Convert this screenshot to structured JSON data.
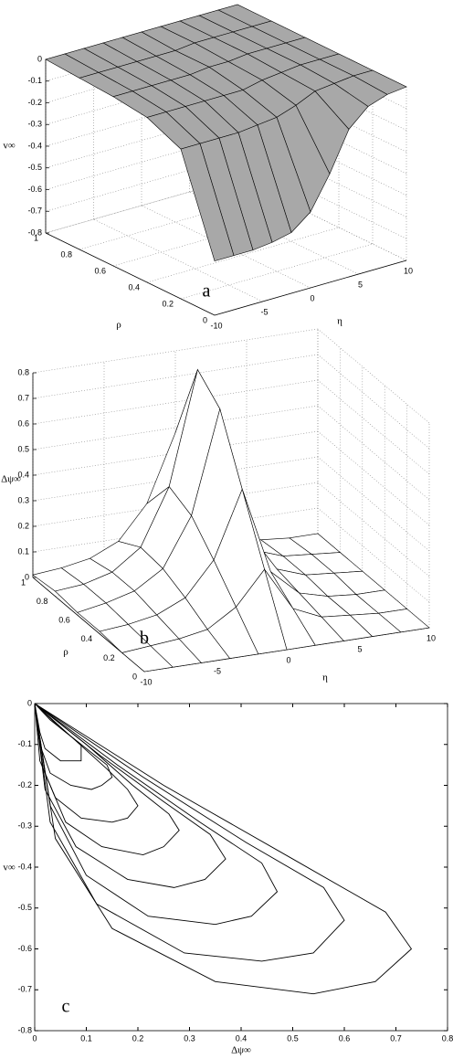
{
  "chart_data": [
    {
      "type": "surface",
      "annotation": "a",
      "zlabel": "v∞",
      "ylabel": "ρ",
      "xlabel": "η",
      "color": "#a8a8a8",
      "x": [
        -10,
        -8,
        -6,
        -4,
        -2,
        0,
        2,
        4,
        6,
        8,
        10
      ],
      "y": [
        0,
        0.2,
        0.4,
        0.6,
        0.8,
        1
      ],
      "values": [
        [
          -0.55,
          -0.55,
          -0.55,
          -0.54,
          -0.52,
          -0.45,
          -0.3,
          -0.12,
          -0.04,
          -0.01,
          0
        ],
        [
          -0.11,
          -0.11,
          -0.11,
          -0.11,
          -0.1,
          -0.09,
          -0.06,
          -0.02,
          -0.01,
          0,
          0
        ],
        [
          -0.04,
          -0.04,
          -0.04,
          -0.04,
          -0.04,
          -0.04,
          -0.02,
          -0.01,
          0,
          0,
          0
        ],
        [
          -0.02,
          -0.02,
          -0.02,
          -0.02,
          -0.02,
          -0.01,
          -0.01,
          0,
          0,
          0,
          0
        ],
        [
          -0.01,
          -0.01,
          -0.01,
          -0.01,
          -0.01,
          -0.01,
          0,
          0,
          0,
          0,
          0
        ],
        [
          0,
          0,
          0,
          0,
          0,
          0,
          0,
          0,
          0,
          0,
          0
        ]
      ],
      "xlim": [
        -10,
        10
      ],
      "xticks": [
        -10,
        -5,
        0,
        5,
        10
      ],
      "ylim": [
        0,
        1
      ],
      "yticks": [
        0,
        0.2,
        0.4,
        0.6,
        0.8,
        1
      ],
      "zlim": [
        -0.8,
        0
      ],
      "zticks": [
        0,
        -0.1,
        -0.2,
        -0.3,
        -0.4,
        -0.5,
        -0.6,
        -0.7,
        -0.8
      ],
      "grid": true
    },
    {
      "type": "surface",
      "annotation": "b",
      "zlabel": "Δψ∞",
      "ylabel": "ρ",
      "xlabel": "η",
      "color": "#ffffff",
      "x": [
        -10,
        -8,
        -6,
        -4,
        -2,
        0,
        2,
        4,
        6,
        8,
        10
      ],
      "y": [
        0,
        0.2,
        0.4,
        0.6,
        0.8,
        1
      ],
      "values": [
        [
          0,
          0,
          0,
          0,
          0,
          0,
          0,
          0,
          0,
          0,
          0
        ],
        [
          0,
          0.01,
          0.02,
          0.04,
          0.11,
          0.24,
          0.07,
          0.02,
          0.01,
          0,
          0
        ],
        [
          0.01,
          0.02,
          0.04,
          0.09,
          0.22,
          0.48,
          0.14,
          0.04,
          0.01,
          0,
          0
        ],
        [
          0.01,
          0.03,
          0.06,
          0.13,
          0.32,
          0.72,
          0.22,
          0.06,
          0.02,
          0.01,
          0
        ],
        [
          0.02,
          0.03,
          0.06,
          0.14,
          0.36,
          0.8,
          0.24,
          0.06,
          0.02,
          0.01,
          0
        ],
        [
          0.01,
          0.02,
          0.04,
          0.09,
          0.22,
          0.48,
          0.14,
          0.04,
          0.01,
          0,
          0
        ]
      ],
      "xlim": [
        -10,
        10
      ],
      "xticks": [
        -10,
        -5,
        0,
        5,
        10
      ],
      "ylim": [
        0,
        1
      ],
      "yticks": [
        0,
        0.2,
        0.4,
        0.6,
        0.8,
        1
      ],
      "zlim": [
        0,
        0.8
      ],
      "zticks": [
        0,
        0.1,
        0.2,
        0.3,
        0.4,
        0.5,
        0.6,
        0.7,
        0.8
      ],
      "grid": true
    },
    {
      "type": "line",
      "annotation": "c",
      "xlabel": "Δψ∞",
      "ylabel": "v∞",
      "color": "#000000",
      "series": [
        {
          "x": [
            0,
            0.25,
            0.5,
            0.68,
            0.73,
            0.66,
            0.54,
            0.35,
            0.15,
            0.04,
            0
          ],
          "values": [
            0,
            -0.2,
            -0.38,
            -0.51,
            -0.6,
            -0.68,
            -0.71,
            -0.68,
            -0.55,
            -0.33,
            0
          ]
        },
        {
          "x": [
            0,
            0.21,
            0.41,
            0.56,
            0.6,
            0.54,
            0.44,
            0.29,
            0.12,
            0.03,
            0
          ],
          "values": [
            0,
            -0.18,
            -0.34,
            -0.45,
            -0.53,
            -0.61,
            -0.63,
            -0.61,
            -0.49,
            -0.29,
            0
          ]
        },
        {
          "x": [
            0,
            0.16,
            0.32,
            0.44,
            0.47,
            0.42,
            0.35,
            0.22,
            0.1,
            0.03,
            0
          ],
          "values": [
            0,
            -0.15,
            -0.29,
            -0.39,
            -0.46,
            -0.52,
            -0.54,
            -0.52,
            -0.42,
            -0.25,
            0
          ]
        },
        {
          "x": [
            0,
            0.13,
            0.25,
            0.34,
            0.37,
            0.33,
            0.27,
            0.18,
            0.08,
            0.02,
            0
          ],
          "values": [
            0,
            -0.13,
            -0.24,
            -0.32,
            -0.38,
            -0.43,
            -0.45,
            -0.43,
            -0.35,
            -0.21,
            0
          ]
        },
        {
          "x": [
            0,
            0.1,
            0.19,
            0.26,
            0.28,
            0.25,
            0.21,
            0.13,
            0.06,
            0.02,
            0
          ],
          "values": [
            0,
            -0.1,
            -0.2,
            -0.27,
            -0.31,
            -0.35,
            -0.37,
            -0.35,
            -0.29,
            -0.17,
            0
          ]
        },
        {
          "x": [
            0,
            0.07,
            0.14,
            0.18,
            0.2,
            0.18,
            0.15,
            0.09,
            0.04,
            0.01,
            0
          ],
          "values": [
            0,
            -0.08,
            -0.16,
            -0.21,
            -0.25,
            -0.28,
            -0.29,
            -0.28,
            -0.23,
            -0.14,
            0
          ]
        },
        {
          "x": [
            0,
            0.05,
            0.1,
            0.14,
            0.15,
            0.13,
            0.11,
            0.07,
            0.03,
            0.01,
            0
          ],
          "values": [
            0,
            -0.06,
            -0.11,
            -0.15,
            -0.18,
            -0.2,
            -0.21,
            -0.2,
            -0.17,
            -0.1,
            0
          ]
        },
        {
          "x": [
            0,
            0.03,
            0.07,
            0.09,
            0.09,
            0.09,
            0.07,
            0.05,
            0.02,
            0.01,
            0
          ],
          "values": [
            0,
            -0.04,
            -0.08,
            -0.1,
            -0.12,
            -0.14,
            -0.14,
            -0.14,
            -0.11,
            -0.07,
            0
          ]
        }
      ],
      "xlim": [
        0,
        0.8
      ],
      "xticks": [
        0,
        0.1,
        0.2,
        0.3,
        0.4,
        0.5,
        0.6,
        0.7,
        0.8
      ],
      "ylim": [
        -0.8,
        0
      ],
      "yticks": [
        0,
        -0.1,
        -0.2,
        -0.3,
        -0.4,
        -0.5,
        -0.6,
        -0.7,
        -0.8
      ]
    }
  ]
}
